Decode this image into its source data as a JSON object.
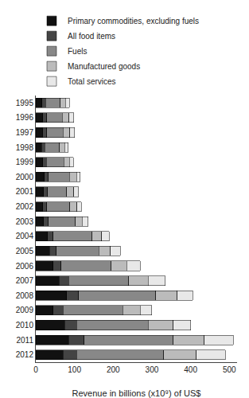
{
  "chart_data": {
    "type": "bar",
    "orientation": "horizontal",
    "stacked": true,
    "categories": [
      1995,
      1996,
      1997,
      1998,
      1999,
      2000,
      2001,
      2002,
      2003,
      2004,
      2005,
      2006,
      2007,
      2008,
      2009,
      2010,
      2011,
      2012
    ],
    "series": [
      {
        "name": "Primary commodities, excluding fuels",
        "color": "#111111",
        "values": [
          16,
          18,
          18,
          15,
          18,
          22,
          20,
          18,
          20,
          30,
          35,
          45,
          60,
          80,
          45,
          75,
          85,
          70
        ]
      },
      {
        "name": "All food items",
        "color": "#444444",
        "values": [
          9,
          10,
          10,
          8,
          9,
          10,
          10,
          10,
          12,
          15,
          18,
          20,
          25,
          30,
          25,
          30,
          40,
          35
        ]
      },
      {
        "name": "Fuels",
        "color": "#888888",
        "values": [
          38,
          40,
          42,
          38,
          45,
          55,
          50,
          60,
          70,
          100,
          110,
          130,
          155,
          200,
          155,
          185,
          230,
          225
        ]
      },
      {
        "name": "Manufactured goods",
        "color": "#bbbbbb",
        "values": [
          14,
          18,
          18,
          14,
          15,
          18,
          18,
          18,
          18,
          25,
          30,
          40,
          50,
          55,
          45,
          65,
          80,
          85
        ]
      },
      {
        "name": "Total services",
        "color": "#e8e8e8",
        "values": [
          10,
          12,
          12,
          9,
          10,
          10,
          12,
          12,
          15,
          20,
          25,
          35,
          45,
          40,
          30,
          45,
          75,
          75
        ]
      }
    ],
    "xlabel": "Revenue in billions (x10⁹) of US$",
    "xlim": [
      0,
      520
    ],
    "xticks": [
      0,
      100,
      200,
      300,
      400,
      500
    ],
    "grid": false,
    "legend": "top"
  }
}
